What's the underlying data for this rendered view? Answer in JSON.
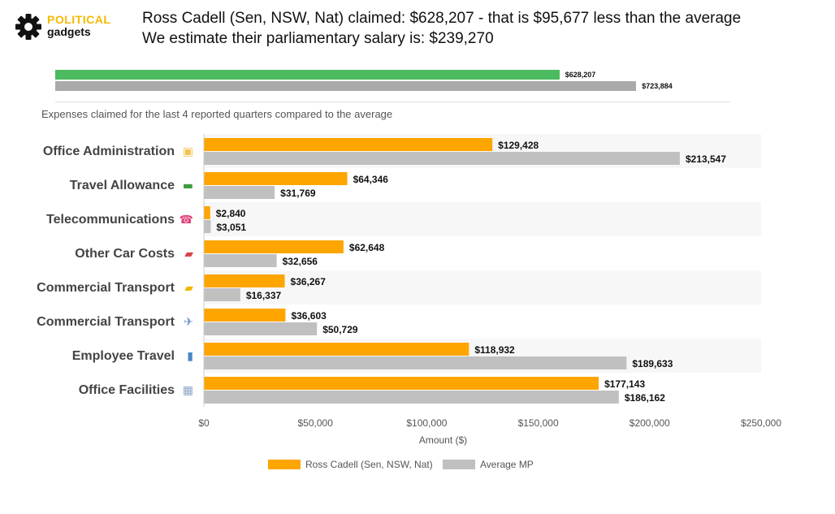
{
  "logo": {
    "line1": "POLITICAL",
    "line2": "gadgets"
  },
  "headline": {
    "line1": "Ross Cadell (Sen, NSW, Nat) claimed: $628,207 - that is $95,677 less than the average",
    "line2": "We estimate their parliamentary salary is: $239,270"
  },
  "summary": {
    "max": 840000,
    "bars": [
      {
        "value": 628207,
        "label": "$628,207",
        "color": "#4cbb5f"
      },
      {
        "value": 723884,
        "label": "$723,884",
        "color": "#aaaaaa"
      }
    ]
  },
  "subtitle": "Expenses claimed for the last 4 reported quarters compared to the average",
  "chart_data": {
    "type": "bar",
    "orientation": "horizontal",
    "categories": [
      "Office Administration",
      "Travel Allowance",
      "Telecommunications",
      "Other Car Costs",
      "Commercial Transport",
      "Commercial Transport",
      "Employee Travel",
      "Office Facilities"
    ],
    "category_icons": [
      "folder-icon",
      "money-icon",
      "phone-icon",
      "car-icon",
      "taxi-icon",
      "airplane-icon",
      "luggage-icon",
      "building-icon"
    ],
    "series": [
      {
        "name": "Ross Cadell  (Sen, NSW, Nat)",
        "color": "#ffa500",
        "values": [
          129428,
          64346,
          2840,
          62648,
          36267,
          36603,
          118932,
          177143
        ],
        "labels": [
          "$129,428",
          "$64,346",
          "$2,840",
          "$62,648",
          "$36,267",
          "$36,603",
          "$118,932",
          "$177,143"
        ]
      },
      {
        "name": "Average MP",
        "color": "#c0c0c0",
        "values": [
          213547,
          31769,
          3051,
          32656,
          16337,
          50729,
          189633,
          186162
        ],
        "labels": [
          "$213,547",
          "$31,769",
          "$3,051",
          "$32,656",
          "$16,337",
          "$50,729",
          "$189,633",
          "$186,162"
        ]
      }
    ],
    "xlim": [
      0,
      250000
    ],
    "xticks": [
      0,
      50000,
      100000,
      150000,
      200000,
      250000
    ],
    "xtick_labels": [
      "$0",
      "$50,000",
      "$100,000",
      "$150,000",
      "$200,000",
      "$250,000"
    ],
    "xlabel": "Amount ($)",
    "legend_position": "bottom",
    "band_colors": [
      "#f7f7f7",
      "#ffffff"
    ]
  }
}
